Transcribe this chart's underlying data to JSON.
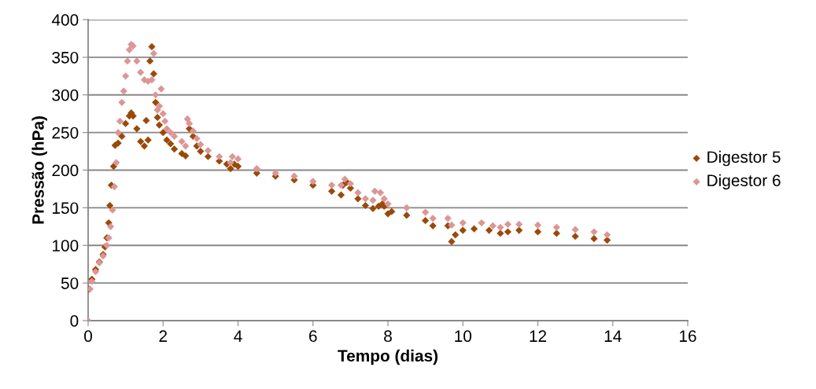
{
  "chart_data": {
    "type": "scatter",
    "xlabel": "Tempo (dias)",
    "ylabel": "Pressão (hPa)",
    "xlim": [
      0,
      16
    ],
    "xticks": [
      0,
      2,
      4,
      6,
      8,
      10,
      12,
      14,
      16
    ],
    "ylim": [
      0,
      400
    ],
    "yticks": [
      0,
      50,
      100,
      150,
      200,
      250,
      300,
      350,
      400
    ],
    "grid": "y",
    "legend": "right",
    "marker": "diamond",
    "series": [
      {
        "name": "Digestor 5",
        "color": "#9a4a08",
        "x": [
          0.02,
          0.1,
          0.2,
          0.3,
          0.4,
          0.45,
          0.5,
          0.55,
          0.58,
          0.62,
          0.68,
          0.72,
          0.8,
          0.9,
          1.0,
          1.1,
          1.15,
          1.2,
          1.3,
          1.4,
          1.5,
          1.55,
          1.6,
          1.65,
          1.7,
          1.75,
          1.8,
          1.85,
          1.9,
          2.0,
          2.1,
          2.2,
          2.3,
          2.5,
          2.6,
          2.7,
          2.8,
          2.9,
          3.0,
          3.2,
          3.5,
          3.7,
          3.8,
          3.9,
          4.0,
          4.5,
          5.0,
          5.5,
          6.0,
          6.5,
          6.75,
          6.8,
          6.9,
          7.0,
          7.2,
          7.4,
          7.6,
          7.75,
          7.85,
          7.9,
          8.0,
          8.1,
          8.5,
          9.0,
          9.2,
          9.6,
          9.7,
          9.8,
          10.0,
          10.3,
          10.7,
          11.0,
          11.2,
          11.5,
          12.0,
          12.5,
          13.0,
          13.5,
          13.85
        ],
        "values": [
          42,
          55,
          68,
          78,
          88,
          98,
          110,
          130,
          153,
          180,
          205,
          233,
          236,
          245,
          262,
          272,
          276,
          272,
          255,
          238,
          232,
          266,
          240,
          345,
          364,
          328,
          290,
          270,
          260,
          250,
          240,
          235,
          228,
          222,
          219,
          255,
          245,
          232,
          225,
          218,
          212,
          208,
          202,
          208,
          205,
          196,
          192,
          187,
          180,
          172,
          167,
          180,
          184,
          176,
          162,
          153,
          149,
          152,
          155,
          152,
          142,
          145,
          140,
          133,
          126,
          126,
          105,
          114,
          120,
          122,
          120,
          116,
          118,
          120,
          118,
          116,
          112,
          109,
          107
        ]
      },
      {
        "name": "Digestor 6",
        "color": "#dc9696",
        "x": [
          0.0,
          0.05,
          0.1,
          0.2,
          0.3,
          0.4,
          0.5,
          0.55,
          0.6,
          0.65,
          0.7,
          0.75,
          0.8,
          0.85,
          0.9,
          0.95,
          1.0,
          1.05,
          1.1,
          1.15,
          1.2,
          1.3,
          1.4,
          1.5,
          1.6,
          1.7,
          1.75,
          1.8,
          1.85,
          1.9,
          1.95,
          2.0,
          2.05,
          2.1,
          2.2,
          2.3,
          2.5,
          2.6,
          2.65,
          2.7,
          2.8,
          2.9,
          3.0,
          3.2,
          3.5,
          3.8,
          3.85,
          4.0,
          4.5,
          5.0,
          5.5,
          6.0,
          6.5,
          6.75,
          6.85,
          7.0,
          7.2,
          7.4,
          7.6,
          7.65,
          7.8,
          7.9,
          8.0,
          8.5,
          9.0,
          9.2,
          9.6,
          9.7,
          10.0,
          10.5,
          10.8,
          11.0,
          11.2,
          11.5,
          12.0,
          12.5,
          13.0,
          13.5,
          13.85
        ],
        "values": [
          0,
          42,
          52,
          65,
          77,
          86,
          100,
          110,
          125,
          147,
          178,
          210,
          250,
          265,
          290,
          305,
          325,
          345,
          360,
          367,
          365,
          345,
          330,
          320,
          318,
          320,
          355,
          300,
          280,
          285,
          308,
          275,
          265,
          255,
          250,
          245,
          238,
          232,
          268,
          262,
          252,
          242,
          234,
          226,
          218,
          210,
          218,
          215,
          202,
          196,
          192,
          185,
          180,
          180,
          188,
          182,
          170,
          162,
          160,
          172,
          170,
          162,
          155,
          150,
          144,
          136,
          136,
          127,
          130,
          130,
          126,
          124,
          128,
          128,
          127,
          124,
          121,
          118,
          114
        ]
      }
    ]
  }
}
